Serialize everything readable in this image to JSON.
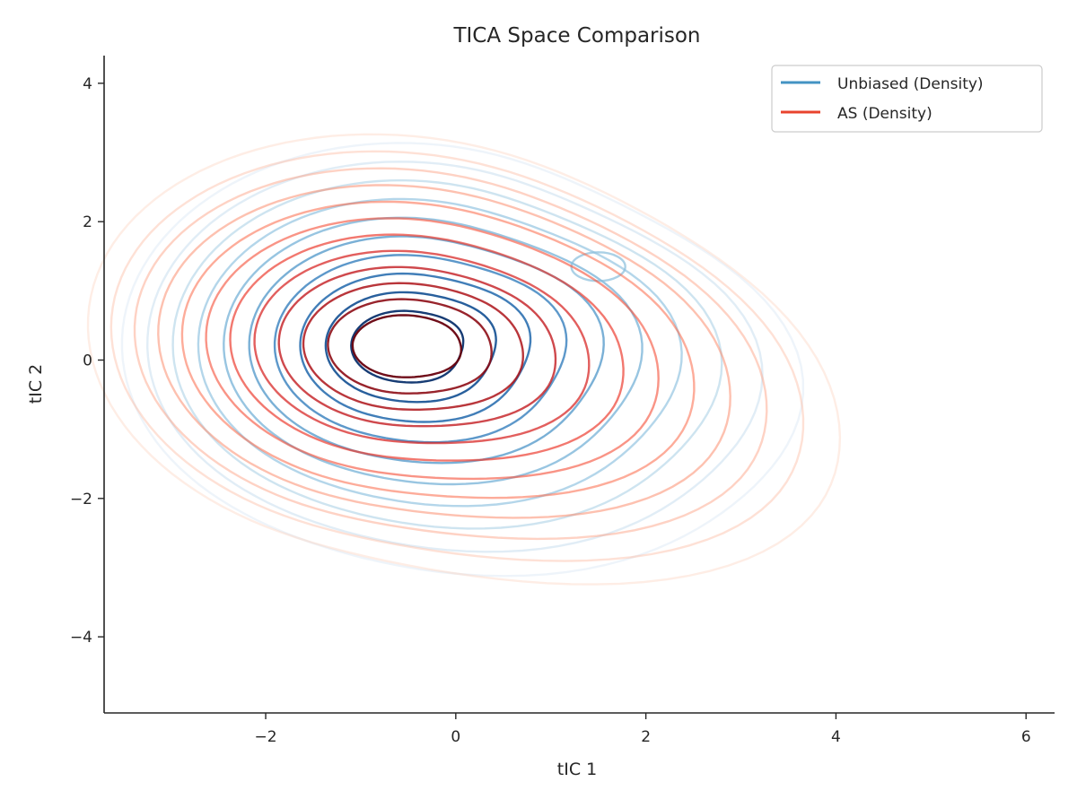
{
  "chart_data": {
    "type": "contour",
    "title": "TICA Space Comparison",
    "xlabel": "tIC 1",
    "ylabel": "tIC 2",
    "xlim": [
      -3.7,
      6.3
    ],
    "ylim": [
      -5.1,
      4.4
    ],
    "xticks": [
      -2,
      0,
      2,
      4,
      6
    ],
    "yticks": [
      -4,
      -2,
      0,
      2,
      4
    ],
    "tick_labels_x": [
      "−2",
      "0",
      "2",
      "4",
      "6"
    ],
    "tick_labels_y": [
      "−4",
      "−2",
      "0",
      "2",
      "4"
    ],
    "grid": false,
    "legend": {
      "placement": "top-right",
      "entries": [
        {
          "label": "Unbiased (Density)",
          "color": "#4393c3"
        },
        {
          "label": "AS (Density)",
          "color": "#e8432d"
        }
      ]
    },
    "series": [
      {
        "name": "Unbiased (Density)",
        "colormap": "Blues",
        "modes": [
          {
            "x": -0.55,
            "y": 0.2,
            "weight": 1.0
          },
          {
            "x": 1.5,
            "y": 1.35,
            "weight": 0.35
          },
          {
            "x": 1.2,
            "y": -1.5,
            "weight": 0.25
          }
        ],
        "levels": 10,
        "extent": {
          "x": [
            -2.6,
            3.1
          ],
          "y": [
            -3.0,
            2.7
          ]
        }
      },
      {
        "name": "AS (Density)",
        "colormap": "Reds",
        "modes": [
          {
            "x": -0.55,
            "y": 0.2,
            "weight": 1.0
          },
          {
            "x": 2.4,
            "y": -1.2,
            "weight": 0.25
          },
          {
            "x": 1.4,
            "y": 1.4,
            "weight": 0.2
          }
        ],
        "levels": 12,
        "extent": {
          "x": [
            -2.75,
            3.8
          ],
          "y": [
            -3.3,
            2.5
          ]
        }
      }
    ]
  }
}
